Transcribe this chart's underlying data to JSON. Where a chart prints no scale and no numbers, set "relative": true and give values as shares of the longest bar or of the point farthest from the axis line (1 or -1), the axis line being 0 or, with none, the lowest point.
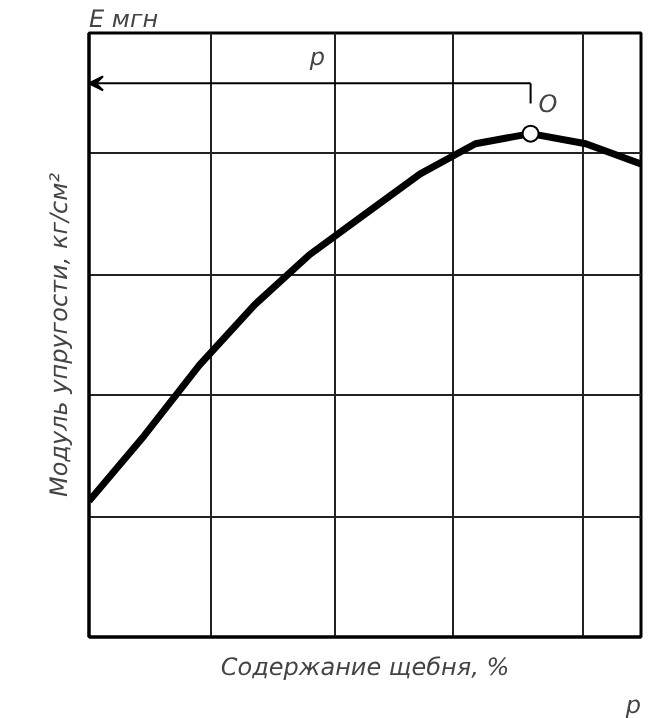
{
  "chart_data": {
    "type": "line",
    "relative": true,
    "xlabel": "Содержание щебня, %",
    "ylabel": "Модуль упругости, кг/см²",
    "categories": [
      null,
      null,
      null,
      null,
      null,
      null,
      null,
      null,
      null,
      null,
      null
    ],
    "series": [
      {
        "color": "#000000",
        "values": [
          0.27,
          0.4,
          0.54,
          0.66,
          0.76,
          0.84,
          0.92,
          0.98,
          1.0,
          0.98,
          0.94
        ]
      }
    ],
    "annotations": [
      "Е мгн",
      "p",
      "O",
      "p"
    ],
    "grid": true,
    "tick_labels": false,
    "line_style": "solid"
  }
}
